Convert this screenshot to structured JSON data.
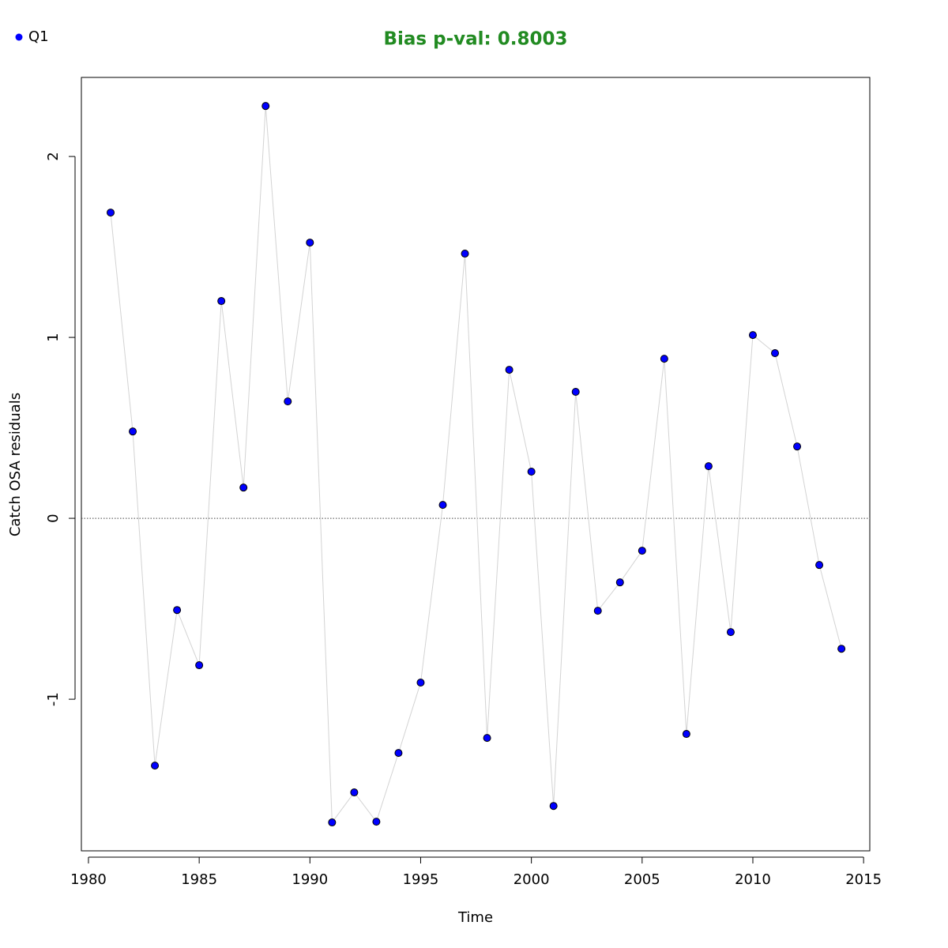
{
  "chart_data": {
    "type": "line",
    "title": "Bias p-val: 0.8003",
    "title_color": "#228b22",
    "x_label": "Time",
    "y_label": "Catch OSA residuals",
    "x": [
      1981,
      1982,
      1983,
      1984,
      1985,
      1986,
      1987,
      1988,
      1989,
      1990,
      1991,
      1992,
      1993,
      1994,
      1995,
      1996,
      1997,
      1998,
      1999,
      2000,
      2001,
      2002,
      2003,
      2004,
      2005,
      2006,
      2007,
      2008,
      2009,
      2010,
      2011,
      2012,
      2013,
      2014
    ],
    "series": [
      {
        "name": "Q1",
        "color": "#0000ff",
        "line_color": "#d3d3d3",
        "values": [
          1.69,
          0.48,
          -1.367,
          -0.507,
          -0.812,
          1.201,
          0.17,
          2.279,
          0.646,
          1.524,
          -1.681,
          -1.515,
          -1.677,
          -1.297,
          -0.908,
          0.074,
          1.463,
          -1.214,
          0.821,
          0.258,
          -1.59,
          0.699,
          -0.511,
          -0.354,
          -0.179,
          0.882,
          -1.192,
          0.288,
          -0.629,
          1.013,
          0.913,
          0.397,
          -0.258,
          -0.721
        ]
      }
    ],
    "xlim": [
      1979.68,
      2015.28
    ],
    "ylim": [
      -1.838,
      2.437
    ],
    "xticks": [
      1980,
      1985,
      1990,
      1995,
      2000,
      2005,
      2010,
      2015
    ],
    "yticks": [
      -1,
      0,
      1,
      2
    ],
    "reference_line": 0,
    "legend": "top-left",
    "grid": false
  }
}
